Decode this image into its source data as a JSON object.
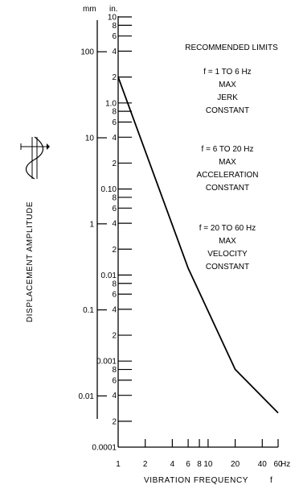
{
  "chart_data": {
    "type": "line",
    "title": "RECOMMENDED LIMITS",
    "xlabel": "VIBRATION FREQUENCY",
    "xlabel_symbol": "f",
    "x_unit": "Hz",
    "ylabel": "DISPLACEMENT AMPLITUDE",
    "y_unit_mm": "mm",
    "y_unit_in": "in.",
    "x_scale": "log",
    "y_scale": "log",
    "xlim": [
      1,
      60
    ],
    "ylim_in": [
      0.0001,
      10
    ],
    "x_ticks": [
      1,
      2,
      4,
      6,
      8,
      10,
      20,
      40,
      60
    ],
    "x_tick_labels": [
      "1",
      "2",
      "4",
      "6",
      "8",
      "10",
      "20",
      "40",
      "60"
    ],
    "in_ticks": [
      {
        "v": 10,
        "label": "10"
      },
      {
        "v": 8,
        "label": "8"
      },
      {
        "v": 6,
        "label": "6"
      },
      {
        "v": 4,
        "label": "4"
      },
      {
        "v": 2,
        "label": "2"
      },
      {
        "v": 1,
        "label": "1.0"
      },
      {
        "v": 0.8,
        "label": "8"
      },
      {
        "v": 0.6,
        "label": "6"
      },
      {
        "v": 0.4,
        "label": "4"
      },
      {
        "v": 0.2,
        "label": "2"
      },
      {
        "v": 0.1,
        "label": "0.10"
      },
      {
        "v": 0.08,
        "label": "8"
      },
      {
        "v": 0.06,
        "label": "6"
      },
      {
        "v": 0.04,
        "label": "4"
      },
      {
        "v": 0.02,
        "label": "2"
      },
      {
        "v": 0.01,
        "label": "0.01"
      },
      {
        "v": 0.008,
        "label": "8"
      },
      {
        "v": 0.006,
        "label": "6"
      },
      {
        "v": 0.004,
        "label": "4"
      },
      {
        "v": 0.002,
        "label": "2"
      },
      {
        "v": 0.001,
        "label": "0.001"
      },
      {
        "v": 0.0008,
        "label": "8"
      },
      {
        "v": 0.0006,
        "label": "6"
      },
      {
        "v": 0.0004,
        "label": "4"
      },
      {
        "v": 0.0002,
        "label": "2"
      },
      {
        "v": 0.0001,
        "label": "0.0001"
      }
    ],
    "mm_ticks": [
      {
        "v": 100,
        "label": "100"
      },
      {
        "v": 10,
        "label": "10"
      },
      {
        "v": 1,
        "label": "1"
      },
      {
        "v": 0.1,
        "label": "0.1"
      },
      {
        "v": 0.01,
        "label": "0.01"
      }
    ],
    "series": [
      {
        "x": [
          1,
          6,
          20,
          60
        ],
        "y_in": [
          2,
          0.012,
          0.0008,
          0.00025
        ]
      }
    ],
    "annotations": [
      [
        "f = 1 TO 6 Hz",
        "MAX",
        "JERK",
        "CONSTANT"
      ],
      [
        "f = 6 TO 20 Hz",
        "MAX",
        "ACCELERATION",
        "CONSTANT"
      ],
      [
        "f = 20 TO 60 Hz",
        "MAX",
        "VELOCITY",
        "CONSTANT"
      ]
    ],
    "grid": false,
    "legend": "none"
  }
}
